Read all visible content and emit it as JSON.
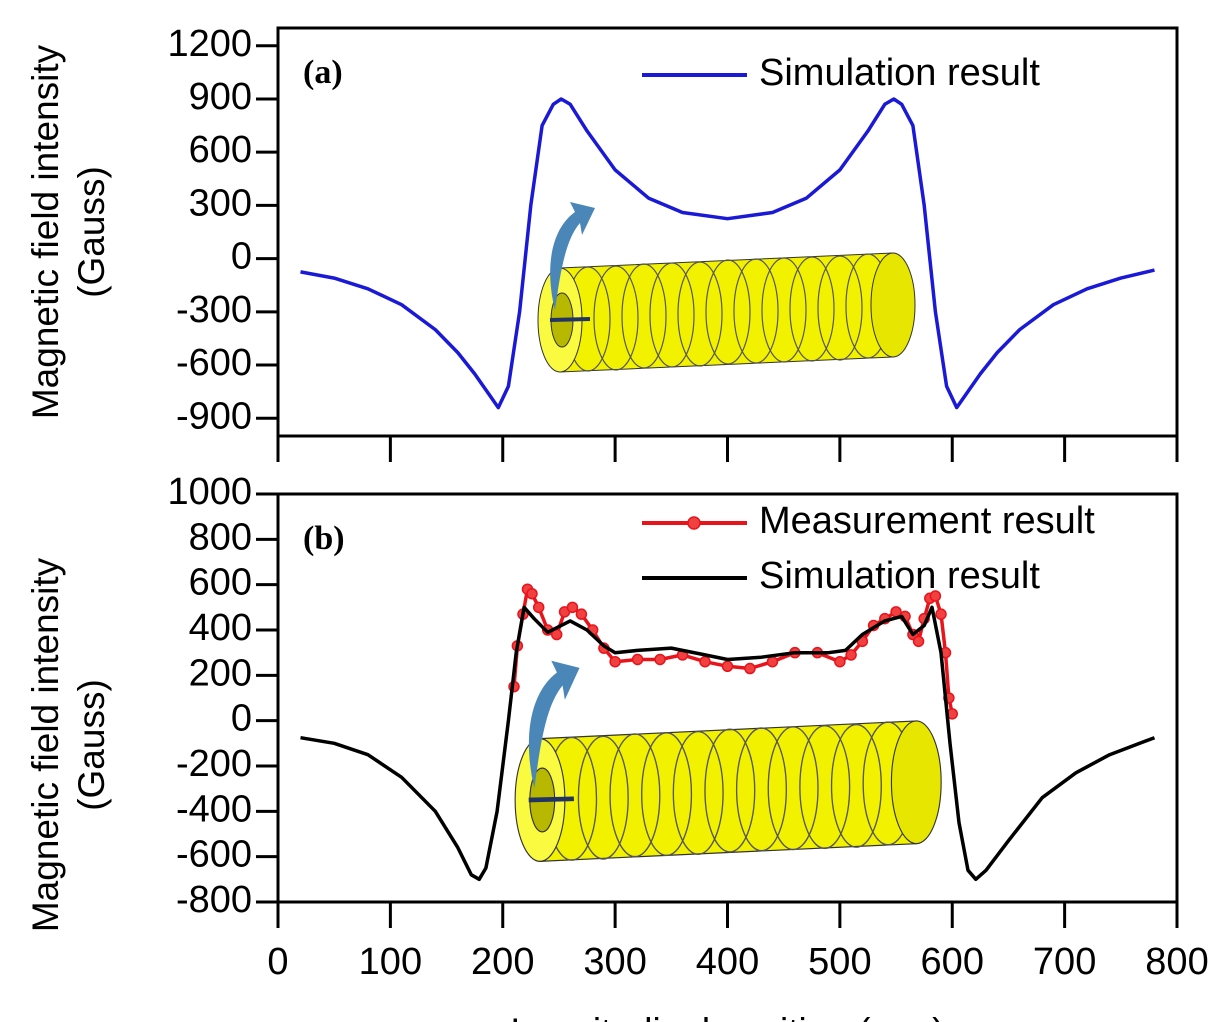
{
  "chart_data": [
    {
      "type": "line",
      "panel_label": "(a)",
      "ylabel": [
        "Magnetic field intensity",
        "(Gauss)"
      ],
      "xlim": [
        0,
        800
      ],
      "xticks": [
        0,
        100,
        200,
        300,
        400,
        500,
        600,
        700,
        800
      ],
      "show_xtick_labels": false,
      "ylim": [
        -1000,
        1300
      ],
      "yticks": [
        1200,
        900,
        600,
        300,
        0,
        -300,
        -600,
        -900
      ],
      "legend": "upper right",
      "series": [
        {
          "name": "Simulation result",
          "color": "#1a1ad6",
          "x": [
            20,
            50,
            80,
            110,
            140,
            160,
            175,
            185,
            196,
            205,
            215,
            225,
            235,
            245,
            252,
            260,
            275,
            300,
            330,
            360,
            400,
            440,
            470,
            500,
            525,
            540,
            548,
            555,
            565,
            575,
            585,
            595,
            604,
            615,
            625,
            640,
            660,
            690,
            720,
            750,
            780
          ],
          "values": [
            -75,
            -110,
            -170,
            -260,
            -400,
            -530,
            -650,
            -740,
            -840,
            -720,
            -300,
            300,
            750,
            870,
            900,
            870,
            720,
            500,
            340,
            260,
            225,
            260,
            340,
            500,
            720,
            870,
            900,
            870,
            750,
            300,
            -300,
            -720,
            -840,
            -740,
            -650,
            -530,
            -400,
            -260,
            -170,
            -110,
            -65
          ]
        }
      ]
    },
    {
      "type": "line",
      "panel_label": "(b)",
      "ylabel": [
        "Magnetic field intensity",
        "(Gauss)"
      ],
      "xlabel": "Longitudinal position (mm)",
      "xlim": [
        0,
        800
      ],
      "xticks": [
        0,
        100,
        200,
        300,
        400,
        500,
        600,
        700,
        800
      ],
      "show_xtick_labels": true,
      "ylim": [
        -800,
        1000
      ],
      "yticks": [
        1000,
        800,
        600,
        400,
        200,
        0,
        -200,
        -400,
        -600,
        -800
      ],
      "legend": "upper right",
      "series": [
        {
          "name": "Measurement result",
          "color": "#e8141c",
          "marker": "circle",
          "x": [
            210,
            213,
            218,
            222,
            226,
            232,
            240,
            248,
            255,
            262,
            270,
            280,
            290,
            300,
            320,
            340,
            360,
            380,
            400,
            420,
            440,
            460,
            480,
            500,
            510,
            520,
            530,
            540,
            550,
            558,
            565,
            570,
            575,
            580,
            585,
            590,
            594,
            597,
            600
          ],
          "values": [
            150,
            330,
            470,
            580,
            560,
            500,
            400,
            380,
            480,
            500,
            470,
            400,
            320,
            260,
            270,
            270,
            290,
            260,
            240,
            230,
            260,
            300,
            300,
            260,
            290,
            350,
            420,
            450,
            480,
            460,
            380,
            350,
            450,
            540,
            550,
            470,
            300,
            100,
            30
          ]
        },
        {
          "name": "Simulation result",
          "color": "#000000",
          "x": [
            20,
            50,
            80,
            110,
            140,
            160,
            172,
            179,
            185,
            195,
            205,
            212,
            219,
            228,
            240,
            260,
            275,
            290,
            300,
            320,
            350,
            380,
            400,
            430,
            460,
            490,
            505,
            520,
            540,
            555,
            565,
            575,
            582,
            590,
            598,
            606,
            614,
            621,
            630,
            650,
            680,
            710,
            740,
            780
          ],
          "values": [
            -75,
            -100,
            -150,
            -250,
            -400,
            -560,
            -680,
            -700,
            -650,
            -400,
            0,
            300,
            500,
            450,
            390,
            440,
            400,
            330,
            300,
            310,
            320,
            290,
            270,
            280,
            300,
            300,
            310,
            380,
            440,
            460,
            380,
            420,
            500,
            300,
            -100,
            -450,
            -660,
            -700,
            -660,
            -530,
            -340,
            -230,
            -150,
            -75
          ]
        }
      ]
    }
  ]
}
